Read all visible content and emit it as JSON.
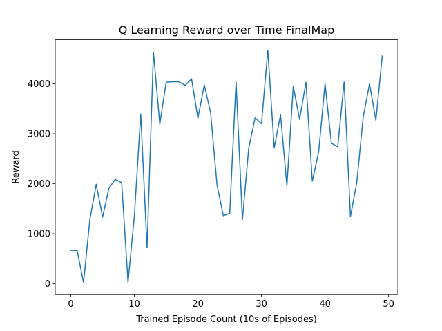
{
  "chart_data": {
    "type": "line",
    "title": "Q Learning Reward over Time FinalMap",
    "xlabel": "Trained Episode Count (10s of Episodes)",
    "ylabel": "Reward",
    "xlim": [
      -2.45,
      51.45
    ],
    "ylim": [
      -215,
      4880
    ],
    "xticks": [
      0,
      10,
      20,
      30,
      40,
      50
    ],
    "yticks": [
      0,
      1000,
      2000,
      3000,
      4000
    ],
    "grid": false,
    "color": "#1f77b4",
    "series": [
      {
        "x": [
          0,
          1,
          2,
          3,
          4,
          5,
          6,
          7,
          8,
          9,
          10,
          11,
          12,
          13,
          14,
          15,
          16,
          17,
          18,
          19,
          20,
          21,
          22,
          23,
          24,
          25,
          26,
          27,
          28,
          29,
          30,
          31,
          32,
          33,
          34,
          35,
          36,
          37,
          38,
          39,
          40,
          41,
          42,
          43,
          44,
          45,
          46,
          47,
          48,
          49
        ],
        "values": [
          670,
          665,
          25,
          1290,
          1990,
          1335,
          1915,
          2085,
          2020,
          30,
          1360,
          3395,
          720,
          4630,
          3190,
          4030,
          4040,
          4040,
          3970,
          4100,
          3310,
          3980,
          3420,
          1980,
          1360,
          1410,
          4045,
          1285,
          2720,
          3320,
          3200,
          4665,
          2715,
          3380,
          1960,
          3945,
          3290,
          4030,
          2050,
          2640,
          4005,
          2810,
          2740,
          4035,
          1345,
          2030,
          3330,
          4000,
          3270,
          4555
        ]
      }
    ]
  }
}
